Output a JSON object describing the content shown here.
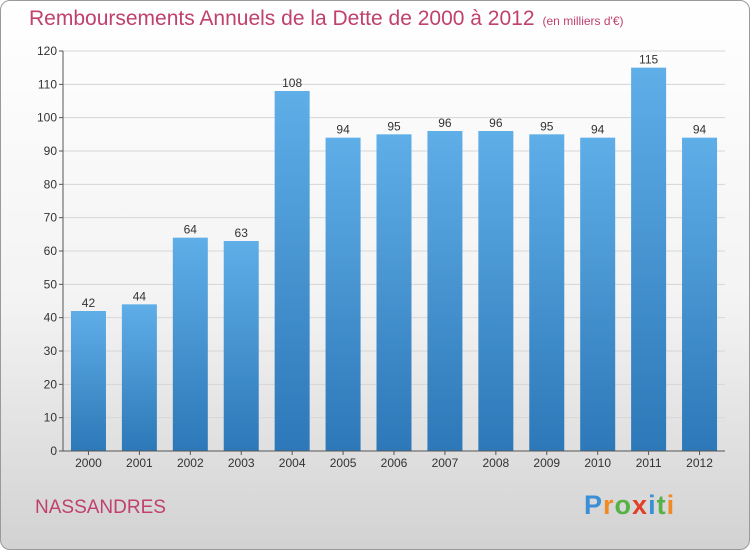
{
  "title": "Remboursements Annuels de la Dette de 2000 à 2012",
  "subtitle": "(en milliers d'€)",
  "commune": "NASSANDRES",
  "logo": {
    "letters": [
      "P",
      "r",
      "o",
      "x",
      "i",
      "t",
      "i"
    ],
    "colors": [
      "#3a8fd6",
      "#f08a24",
      "#56b146",
      "#e0402a",
      "#3a8fd6",
      "#56b146",
      "#f08a24"
    ]
  },
  "colors": {
    "bar_light": "#5faee8",
    "bar_dark": "#2d78b8",
    "title": "#c0406e"
  },
  "chart_data": {
    "type": "bar",
    "title": "Remboursements Annuels de la Dette de 2000 à 2012",
    "subtitle": "(en milliers d'€)",
    "categories": [
      "2000",
      "2001",
      "2002",
      "2003",
      "2004",
      "2005",
      "2006",
      "2007",
      "2008",
      "2009",
      "2010",
      "2011",
      "2012"
    ],
    "values": [
      42,
      44,
      64,
      63,
      108,
      94,
      95,
      96,
      96,
      95,
      94,
      115,
      94
    ],
    "ylim": [
      0,
      120
    ],
    "yticks": [
      0,
      10,
      20,
      30,
      40,
      50,
      60,
      70,
      80,
      90,
      100,
      110,
      120
    ],
    "grid": "horizontal",
    "legend": "none"
  }
}
